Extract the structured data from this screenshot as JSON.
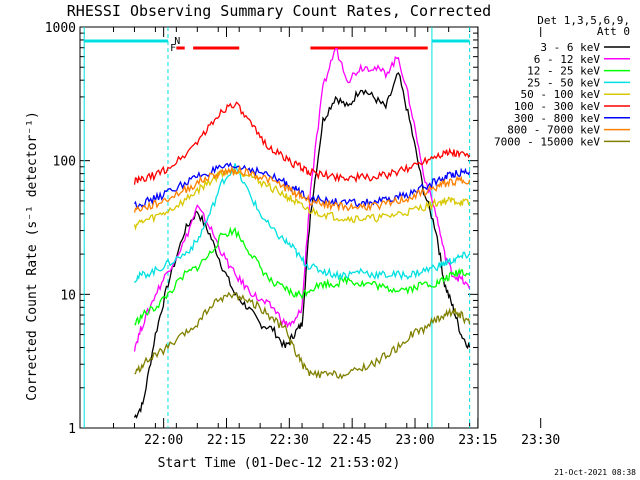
{
  "chart_data": {
    "type": "line",
    "title": "RHESSI Observing Summary Count Rates, Corrected",
    "xlabel": "Start Time (01-Dec-12 21:53:02)",
    "ylabel": "Corrected Count Rate (s⁻¹ detector⁻¹)",
    "yscale": "log",
    "ylim": [
      1,
      1000
    ],
    "xlim_minutes": [
      -13,
      82
    ],
    "x_ticks": [
      "22:00",
      "22:15",
      "22:30",
      "22:45",
      "23:00",
      "23:15",
      "23:30"
    ],
    "y_ticks": [
      "1",
      "10",
      "100",
      "1000"
    ],
    "grid": false,
    "legend_position": "outside-right",
    "legend_header": [
      "Det 1,3,5,6,9,",
      "Att 0"
    ],
    "series": [
      {
        "name": "3 - 6 keV",
        "color": "#000000",
        "x": [
          0,
          2,
          5,
          8,
          12,
          15,
          18,
          21,
          24,
          27,
          30,
          33,
          36,
          38,
          40,
          42,
          45,
          48,
          51,
          54,
          57,
          60,
          63,
          66,
          69,
          72,
          74,
          76,
          78,
          80
        ],
        "y": [
          1.2,
          1.5,
          5,
          12,
          30,
          42,
          28,
          16,
          10,
          8,
          6,
          5.5,
          4,
          5,
          6,
          40,
          200,
          300,
          250,
          350,
          300,
          250,
          450,
          180,
          60,
          30,
          12,
          8,
          5,
          4
        ]
      },
      {
        "name": "6 - 12 keV",
        "color": "#ff00ff",
        "x": [
          0,
          2,
          5,
          8,
          12,
          15,
          18,
          21,
          24,
          27,
          30,
          33,
          36,
          38,
          40,
          42,
          45,
          48,
          51,
          54,
          57,
          60,
          63,
          66,
          69,
          72,
          74,
          76,
          78,
          80
        ],
        "y": [
          4,
          6,
          10,
          15,
          25,
          45,
          32,
          20,
          14,
          11,
          9,
          8,
          6,
          6,
          8,
          60,
          350,
          700,
          400,
          500,
          500,
          450,
          600,
          250,
          80,
          40,
          20,
          14,
          13,
          11
        ]
      },
      {
        "name": "12 - 25 keV",
        "color": "#00ff00",
        "x": [
          0,
          2,
          5,
          8,
          12,
          15,
          18,
          21,
          24,
          27,
          30,
          33,
          36,
          38,
          40,
          42,
          45,
          48,
          51,
          54,
          57,
          60,
          63,
          66,
          69,
          72,
          74,
          76,
          78,
          80
        ],
        "y": [
          6,
          7,
          8,
          10,
          14,
          16,
          20,
          28,
          30,
          22,
          16,
          12,
          11,
          10,
          10,
          11,
          12,
          12,
          13,
          12,
          12,
          11,
          11,
          11,
          12,
          12,
          13,
          14,
          15,
          14
        ]
      },
      {
        "name": "25 - 50 keV",
        "color": "#00e0e0",
        "x": [
          0,
          2,
          5,
          8,
          12,
          15,
          18,
          21,
          24,
          27,
          30,
          33,
          36,
          38,
          40,
          42,
          45,
          48,
          51,
          54,
          57,
          60,
          63,
          66,
          69,
          72,
          74,
          76,
          78,
          80
        ],
        "y": [
          13,
          14,
          15,
          17,
          20,
          25,
          40,
          70,
          90,
          60,
          40,
          30,
          25,
          22,
          18,
          16,
          15,
          14,
          14,
          15,
          14,
          14,
          14,
          14,
          15,
          16,
          17,
          18,
          19,
          20
        ]
      },
      {
        "name": "50 - 100 keV",
        "color": "#d8c800",
        "x": [
          0,
          2,
          5,
          8,
          12,
          15,
          18,
          21,
          24,
          27,
          30,
          33,
          36,
          38,
          40,
          42,
          45,
          48,
          51,
          54,
          57,
          60,
          63,
          66,
          69,
          72,
          74,
          76,
          78,
          80
        ],
        "y": [
          33,
          35,
          38,
          42,
          50,
          60,
          70,
          82,
          85,
          80,
          70,
          62,
          55,
          50,
          45,
          42,
          40,
          38,
          37,
          37,
          37,
          38,
          40,
          42,
          45,
          48,
          50,
          50,
          49,
          48
        ]
      },
      {
        "name": "100 - 300 keV",
        "color": "#ff0000",
        "x": [
          0,
          2,
          5,
          8,
          12,
          15,
          18,
          21,
          24,
          27,
          30,
          33,
          36,
          38,
          40,
          42,
          45,
          48,
          51,
          54,
          57,
          60,
          63,
          66,
          69,
          72,
          74,
          76,
          78,
          80
        ],
        "y": [
          70,
          72,
          78,
          88,
          110,
          140,
          180,
          240,
          270,
          200,
          150,
          120,
          105,
          95,
          88,
          82,
          78,
          76,
          75,
          75,
          75,
          78,
          82,
          90,
          100,
          110,
          115,
          115,
          112,
          110
        ]
      },
      {
        "name": "300 - 800 keV",
        "color": "#0000ff",
        "x": [
          0,
          2,
          5,
          8,
          12,
          15,
          18,
          21,
          24,
          27,
          30,
          33,
          36,
          38,
          40,
          42,
          45,
          48,
          51,
          54,
          57,
          60,
          63,
          66,
          69,
          72,
          74,
          76,
          78,
          80
        ],
        "y": [
          47,
          48,
          52,
          58,
          68,
          76,
          82,
          88,
          90,
          88,
          82,
          75,
          68,
          62,
          57,
          53,
          50,
          49,
          48,
          48,
          49,
          50,
          53,
          57,
          63,
          70,
          75,
          80,
          82,
          83
        ]
      },
      {
        "name": "800 - 7000 keV",
        "color": "#ff8000",
        "x": [
          0,
          2,
          5,
          8,
          12,
          15,
          18,
          21,
          24,
          27,
          30,
          33,
          36,
          38,
          40,
          42,
          45,
          48,
          51,
          54,
          57,
          60,
          63,
          66,
          69,
          72,
          74,
          76,
          78,
          80
        ],
        "y": [
          43,
          44,
          47,
          52,
          60,
          68,
          76,
          82,
          85,
          82,
          76,
          70,
          63,
          58,
          54,
          50,
          48,
          46,
          45,
          45,
          46,
          47,
          50,
          53,
          58,
          63,
          67,
          70,
          71,
          72
        ]
      },
      {
        "name": "7000 - 15000 keV",
        "color": "#808000",
        "x": [
          0,
          2,
          5,
          8,
          12,
          15,
          18,
          21,
          24,
          27,
          30,
          33,
          36,
          38,
          40,
          42,
          45,
          48,
          51,
          54,
          57,
          60,
          63,
          66,
          69,
          72,
          74,
          76,
          78,
          80
        ],
        "y": [
          2.5,
          3,
          3.5,
          4,
          5,
          6,
          8,
          9.5,
          10,
          9,
          8,
          6.5,
          5.5,
          4,
          3,
          2.5,
          2.5,
          2.5,
          2.5,
          2.8,
          3,
          3.5,
          4,
          5,
          5.5,
          6.5,
          7,
          7.5,
          7,
          6
        ]
      }
    ],
    "annotations": [
      {
        "text": "N",
        "color": "#00c8ff"
      },
      {
        "text": "F",
        "color": "#ff0000"
      }
    ],
    "flag_bars": [
      {
        "name": "flare-flag",
        "color": "#ff0000",
        "segments": [
          [
            10,
            12
          ],
          [
            14,
            25
          ],
          [
            42,
            70
          ]
        ]
      },
      {
        "name": "night-flag",
        "color": "#00e0e0",
        "segments": [
          [
            -12,
            8
          ],
          [
            71,
            80
          ]
        ]
      }
    ],
    "vlines": [
      {
        "x": -12,
        "color": "#00e0e0",
        "style": "solid"
      },
      {
        "x": 8,
        "color": "#00e0e0",
        "style": "dashed"
      },
      {
        "x": 71,
        "color": "#00e0e0",
        "style": "solid"
      },
      {
        "x": 80,
        "color": "#00e0e0",
        "style": "dashed"
      }
    ],
    "footer": "21-Oct-2021 08:38"
  }
}
